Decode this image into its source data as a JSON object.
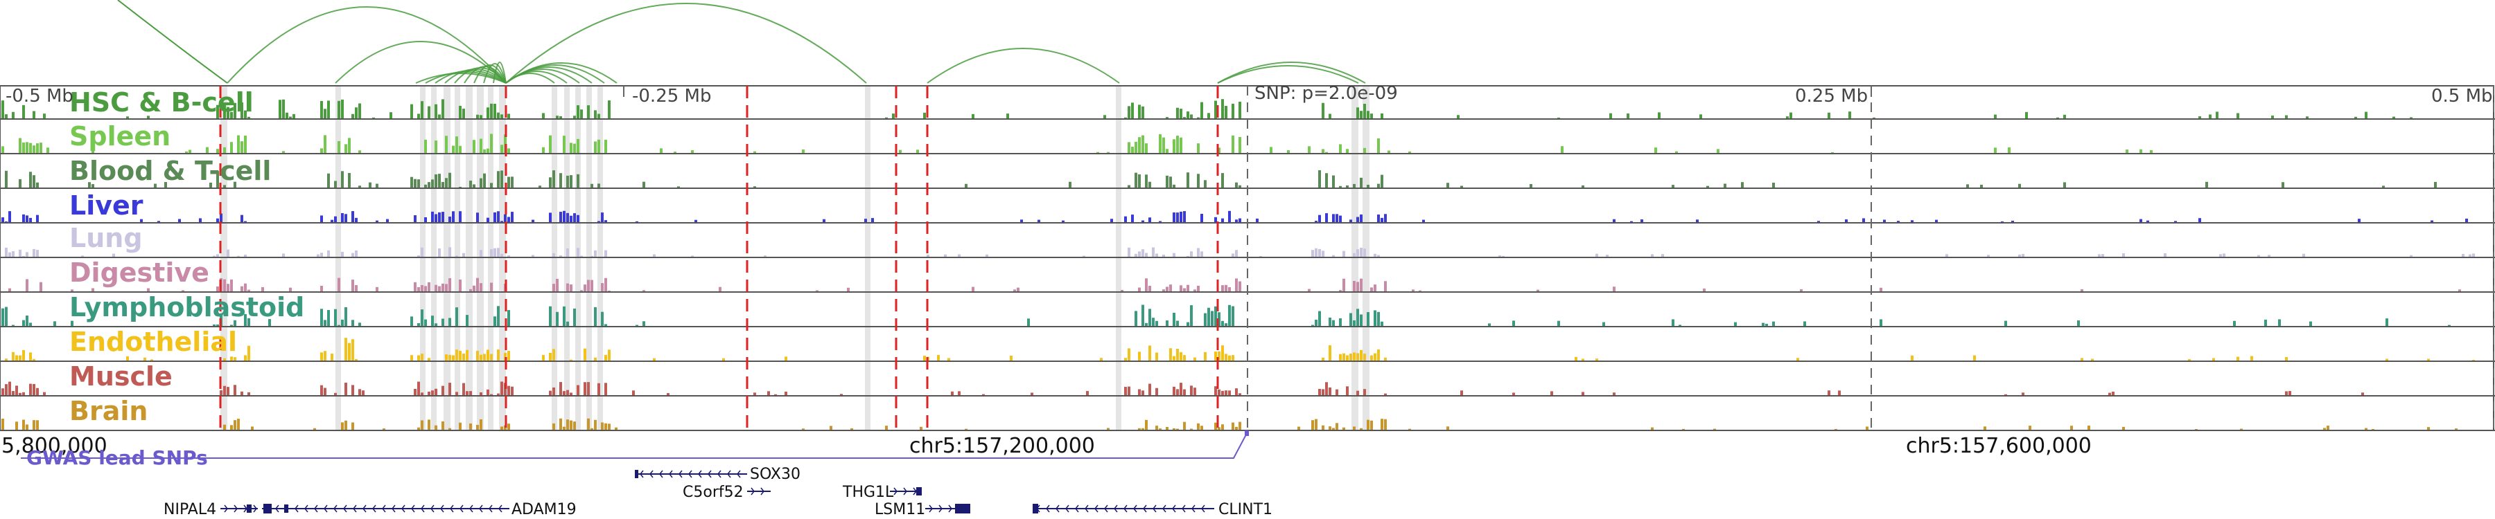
{
  "tracks": [
    {
      "name": "HSC & B-cell",
      "color": "#4a9c3f"
    },
    {
      "name": "Spleen",
      "color": "#77c850"
    },
    {
      "name": "Blood & T-cell",
      "color": "#5a8a55"
    },
    {
      "name": "Liver",
      "color": "#3a3ad8"
    },
    {
      "name": "Lung",
      "color": "#c9c4e0"
    },
    {
      "name": "Digestive",
      "color": "#c98aa8"
    },
    {
      "name": "Lymphoblastoid",
      "color": "#3a9a80"
    },
    {
      "name": "Endothelial",
      "color": "#f2c21a"
    },
    {
      "name": "Muscle",
      "color": "#c05a55"
    },
    {
      "name": "Brain",
      "color": "#c8962a"
    }
  ],
  "ticks": {
    "minus_half": "-0.5 Mb",
    "minus_quarter": "-0.25 Mb",
    "snp": "SNP: p=2.0e-09",
    "plus_quarter": "0.25 Mb",
    "plus_half": "0.5 Mb"
  },
  "coordinates": {
    "left": "5,800,000",
    "middle": "chr5:157,200,000",
    "right": "chr5:157,600,000"
  },
  "gwas_label": "GWAS lead SNPs",
  "genes": {
    "sox30": "SOX30",
    "c5orf52": "C5orf52",
    "thg1l": "THG1L",
    "lsm11": "LSM11",
    "nipal4": "NIPAL4",
    "adam19": "ADAM19",
    "clint1": "CLINT1"
  },
  "colors": {
    "loops": "#4a9c3f",
    "gwas_line": "#6a5acd",
    "gwas_dash": "#dd2222",
    "gene_model": "#1a1a6e"
  }
}
